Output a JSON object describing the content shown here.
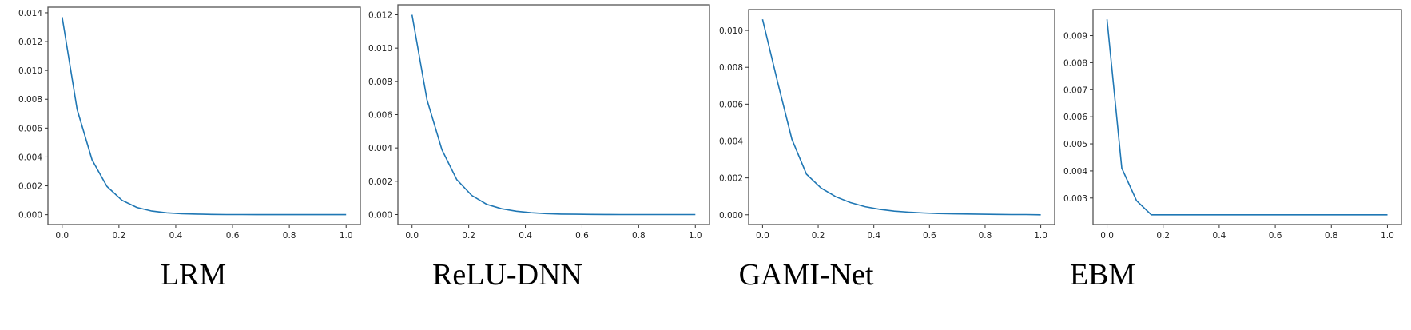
{
  "chart_data": [
    {
      "type": "line",
      "title": "LRM",
      "x": [
        0.0,
        0.0526,
        0.1053,
        0.1579,
        0.2105,
        0.2632,
        0.3158,
        0.3684,
        0.4211,
        0.4737,
        0.5263,
        0.5789,
        0.6316,
        0.6842,
        0.7368,
        0.7895,
        0.8421,
        0.8947,
        0.9474,
        1.0
      ],
      "y": [
        0.0137,
        0.0073,
        0.0038,
        0.00195,
        0.001,
        0.0005,
        0.00025,
        0.00013,
        7e-05,
        4e-05,
        2e-05,
        1e-05,
        5e-06,
        0.0,
        0.0,
        0.0,
        0.0,
        0.0,
        0.0,
        0.0
      ],
      "xticks": [
        "0.0",
        "0.2",
        "0.4",
        "0.6",
        "0.8",
        "1.0"
      ],
      "yticks": [
        "0.000",
        "0.002",
        "0.004",
        "0.006",
        "0.008",
        "0.010",
        "0.012",
        "0.014"
      ],
      "xlim": [
        -0.05,
        1.05
      ],
      "ylim": [
        -0.000685,
        0.014385
      ],
      "grid": false,
      "color": "#1f77b4"
    },
    {
      "type": "line",
      "title": "ReLU-DNN",
      "x": [
        0.0,
        0.0526,
        0.1053,
        0.1579,
        0.2105,
        0.2632,
        0.3158,
        0.3684,
        0.4211,
        0.4737,
        0.5263,
        0.5789,
        0.6316,
        0.6842,
        0.7368,
        0.7895,
        0.8421,
        0.8947,
        0.9474,
        1.0
      ],
      "y": [
        0.012,
        0.0069,
        0.0039,
        0.0021,
        0.00115,
        0.00062,
        0.00035,
        0.0002,
        0.00011,
        6e-05,
        3e-05,
        2e-05,
        1e-05,
        5e-06,
        0.0,
        0.0,
        0.0,
        0.0,
        0.0,
        0.0
      ],
      "xticks": [
        "0.0",
        "0.2",
        "0.4",
        "0.6",
        "0.8",
        "1.0"
      ],
      "yticks": [
        "0.000",
        "0.002",
        "0.004",
        "0.006",
        "0.008",
        "0.010",
        "0.012"
      ],
      "xlim": [
        -0.05,
        1.05
      ],
      "ylim": [
        -0.0006,
        0.0126
      ],
      "grid": false,
      "color": "#1f77b4"
    },
    {
      "type": "line",
      "title": "GAMI-Net",
      "x": [
        0.0,
        0.0526,
        0.1053,
        0.1579,
        0.2105,
        0.2632,
        0.3158,
        0.3684,
        0.4211,
        0.4737,
        0.5263,
        0.5789,
        0.6316,
        0.6842,
        0.7368,
        0.7895,
        0.8421,
        0.8947,
        0.9474,
        1.0
      ],
      "y": [
        0.0106,
        0.0073,
        0.0041,
        0.0022,
        0.00145,
        0.00098,
        0.00066,
        0.00044,
        0.0003,
        0.0002,
        0.00014,
        0.0001,
        7e-05,
        5e-05,
        4e-05,
        3e-05,
        2e-05,
        1e-05,
        1e-05,
        0.0
      ],
      "xticks": [
        "0.0",
        "0.2",
        "0.4",
        "0.6",
        "0.8",
        "1.0"
      ],
      "yticks": [
        "0.000",
        "0.002",
        "0.004",
        "0.006",
        "0.008",
        "0.010"
      ],
      "xlim": [
        -0.05,
        1.05
      ],
      "ylim": [
        -0.00053,
        0.01113
      ],
      "grid": false,
      "color": "#1f77b4"
    },
    {
      "type": "line",
      "title": "EBM",
      "x": [
        0.0,
        0.0526,
        0.1053,
        0.1579,
        0.2105,
        0.2632,
        0.3158,
        0.3684,
        0.4211,
        0.4737,
        0.5263,
        0.5789,
        0.6316,
        0.6842,
        0.7368,
        0.7895,
        0.8421,
        0.8947,
        0.9474,
        1.0
      ],
      "y": [
        0.0096,
        0.0041,
        0.0029,
        0.00238,
        0.00238,
        0.00238,
        0.00238,
        0.00238,
        0.00238,
        0.00238,
        0.00238,
        0.00238,
        0.00238,
        0.00238,
        0.00238,
        0.00238,
        0.00238,
        0.00238,
        0.00238,
        0.00238
      ],
      "xticks": [
        "0.0",
        "0.2",
        "0.4",
        "0.6",
        "0.8",
        "1.0"
      ],
      "yticks": [
        "0.003",
        "0.004",
        "0.005",
        "0.006",
        "0.007",
        "0.008",
        "0.009"
      ],
      "xlim": [
        -0.05,
        1.05
      ],
      "ylim": [
        0.00202,
        0.00996
      ],
      "grid": false,
      "color": "#1f77b4"
    }
  ]
}
